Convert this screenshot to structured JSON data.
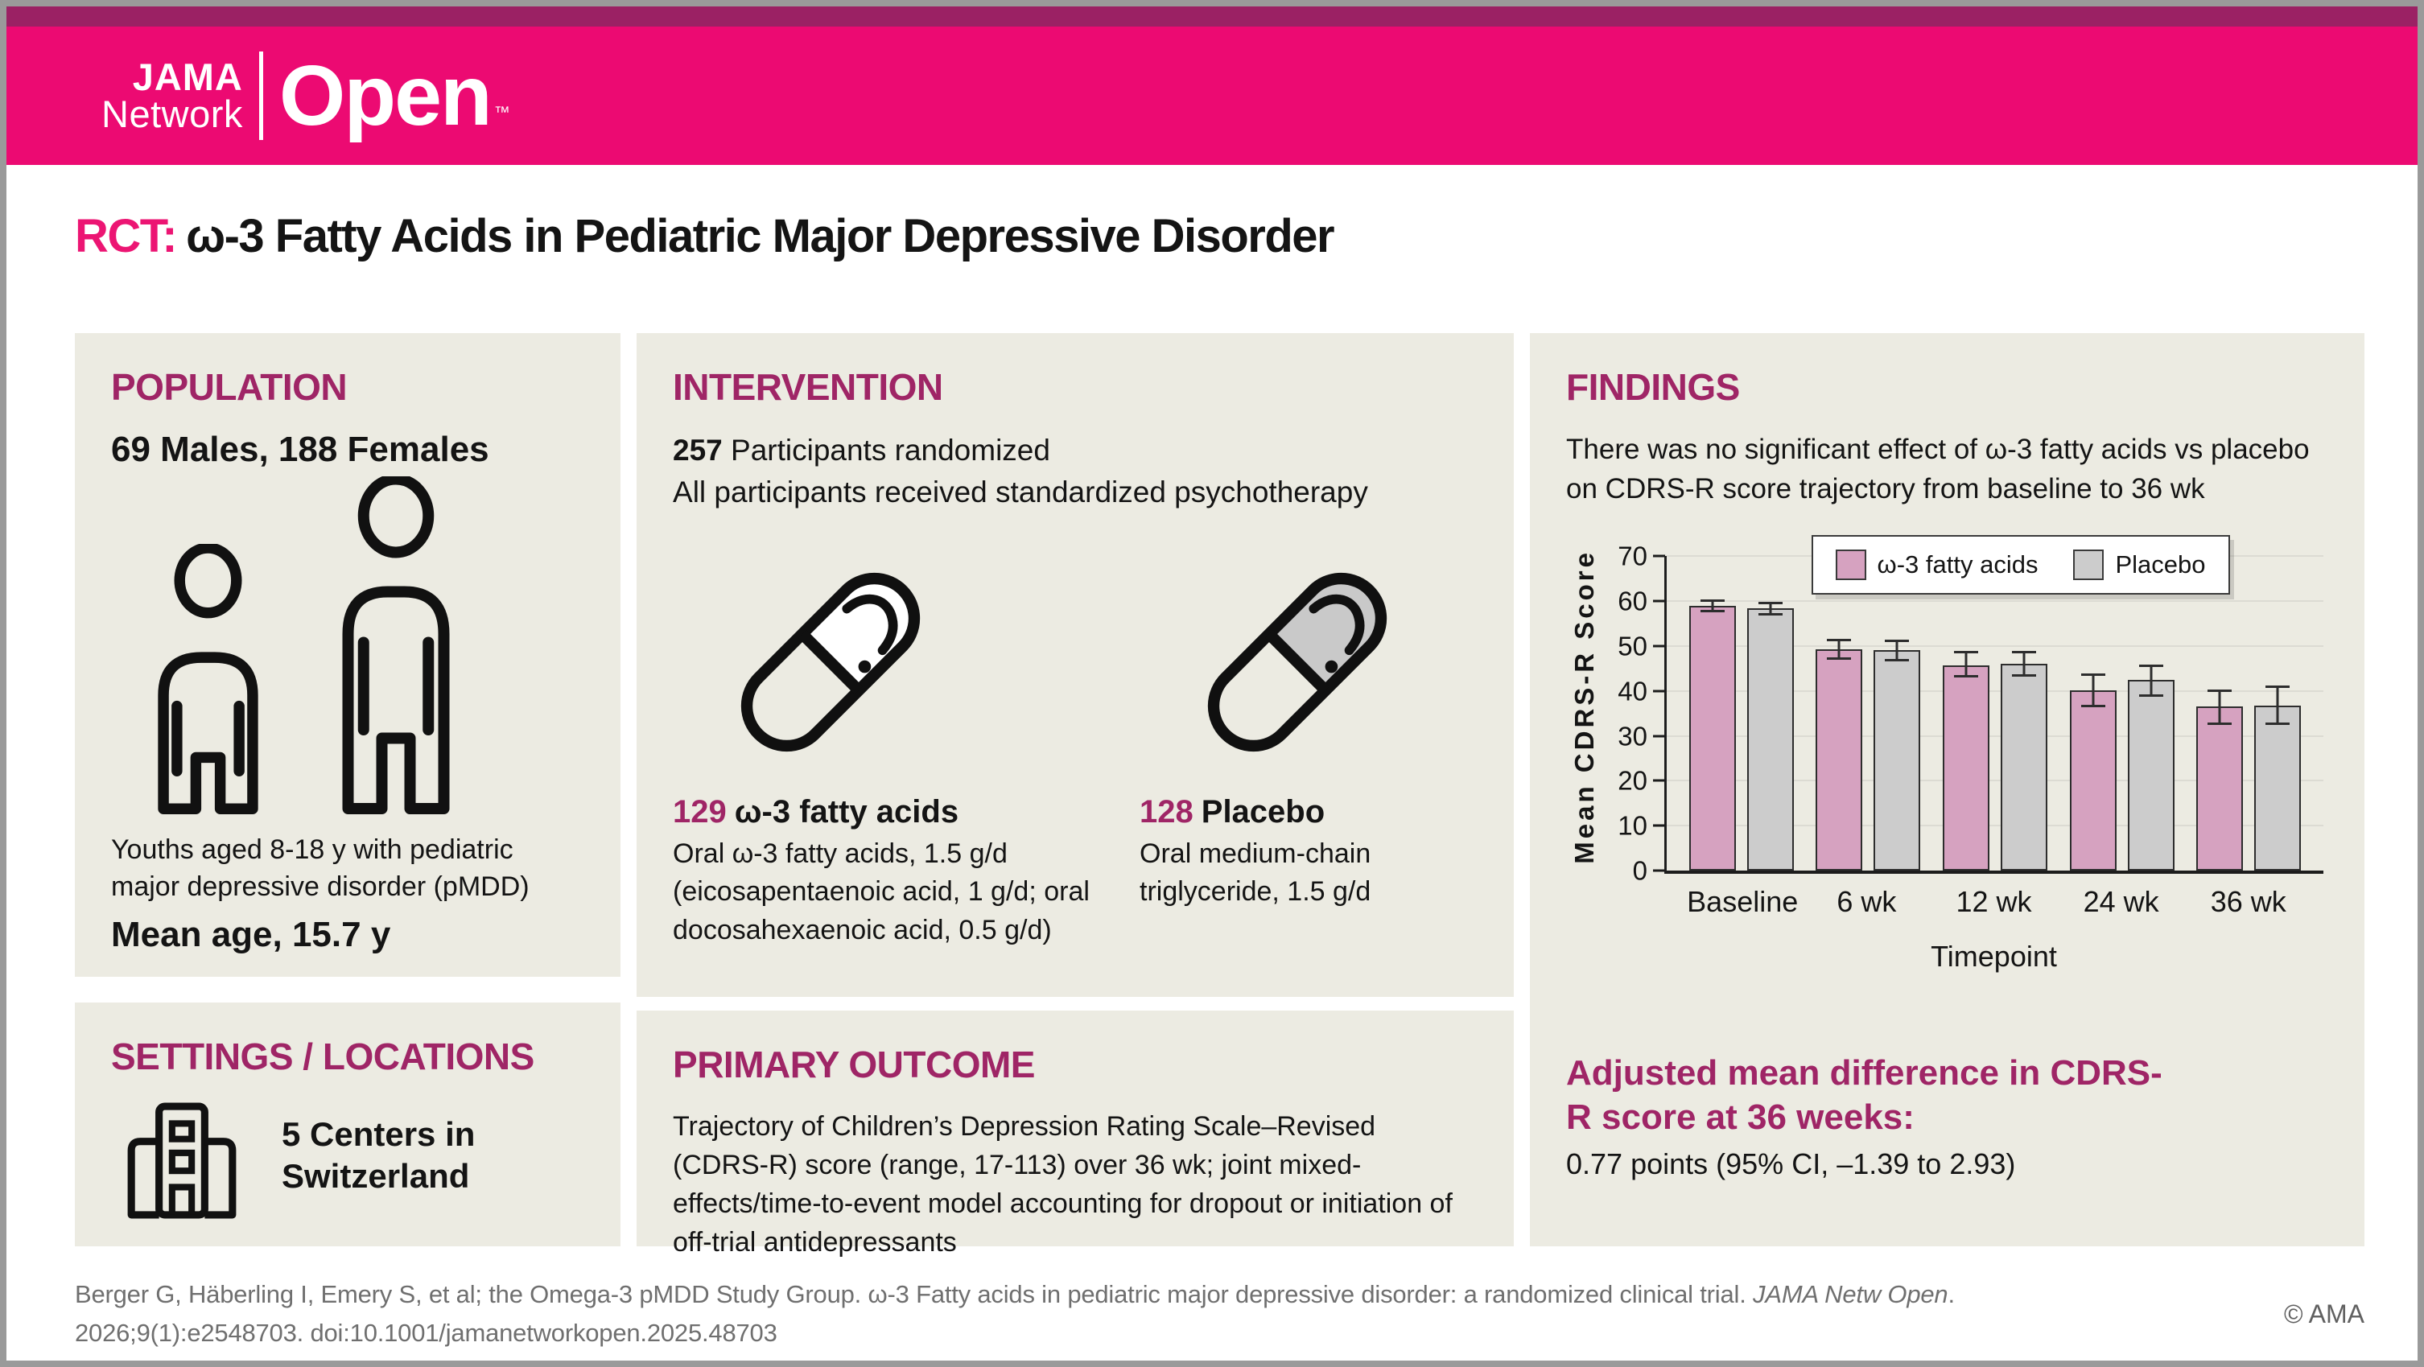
{
  "header": {
    "journal_top": "JAMA",
    "journal_bottom": "Network",
    "journal_name": "Open",
    "tm": "™"
  },
  "title": {
    "prefix": "RCT:",
    "text": "ω-3 Fatty Acids in Pediatric Major Depressive Disorder"
  },
  "population": {
    "heading": "POPULATION",
    "counts": "69 Males, 188 Females",
    "description": "Youths aged 8-18 y with pediatric major depressive disorder (pMDD)",
    "mean_age": "Mean age, 15.7 y"
  },
  "settings": {
    "heading": "SETTINGS / LOCATIONS",
    "text": "5 Centers in Switzerland"
  },
  "intervention": {
    "heading": "INTERVENTION",
    "randomized_count": "257",
    "randomized_label": " Participants randomized",
    "subtitle": "All participants received standardized psychotherapy",
    "arms": [
      {
        "count": "129",
        "name": "ω-3 fatty acids",
        "detail": "Oral ω-3 fatty acids, 1.5 g/d (eicosapentaenoic acid, 1 g/d; oral docosahexaenoic acid, 0.5 g/d)",
        "pill_fill": "#ffffff"
      },
      {
        "count": "128",
        "name": "Placebo",
        "detail": "Oral medium-chain triglyceride, 1.5 g/d",
        "pill_fill": "#c9c9c9"
      }
    ]
  },
  "primary_outcome": {
    "heading": "PRIMARY OUTCOME",
    "text": "Trajectory of Children’s Depression Rating Scale–Revised (CDRS-R) score (range, 17-113) over 36 wk; joint mixed-effects/time-to-event model accounting for dropout or initiation of off-trial antidepressants"
  },
  "findings": {
    "heading": "FINDINGS",
    "summary": "There was no significant effect of ω-3 fatty acids vs placebo on CDRS-R score trajectory from baseline to 36 wk",
    "result_heading": "Adjusted mean difference in CDRS-R score at 36 weeks:",
    "result_value": "0.77 points (95% CI, –1.39 to 2.93)"
  },
  "chart_data": {
    "type": "bar",
    "title": "",
    "categories": [
      "Baseline",
      "6 wk",
      "12 wk",
      "24 wk",
      "36 wk"
    ],
    "series": [
      {
        "name": "ω-3 fatty acids",
        "color": "#d6a2c0",
        "values": [
          59.0,
          49.3,
          45.7,
          40.2,
          36.5
        ],
        "ci_low": [
          57.4,
          46.9,
          42.9,
          36.4,
          32.4
        ],
        "ci_high": [
          60.4,
          51.6,
          48.9,
          43.8,
          40.3
        ]
      },
      {
        "name": "Placebo",
        "color": "#cccccc",
        "values": [
          58.3,
          49.0,
          46.1,
          42.4,
          36.8
        ],
        "ci_low": [
          56.8,
          46.5,
          43.2,
          38.7,
          32.4
        ],
        "ci_high": [
          59.8,
          51.4,
          48.9,
          45.8,
          41.2
        ]
      }
    ],
    "xlabel": "Timepoint",
    "ylabel": "Mean CDRS-R Score",
    "ylim": [
      0,
      70
    ],
    "yticks": [
      0,
      10,
      20,
      30,
      40,
      50,
      60,
      70
    ],
    "grid": true,
    "legend_position": "top-center"
  },
  "footer": {
    "citation_before_italic": "Berger G, Häberling I, Emery S, et al; the Omega-3 pMDD Study Group. ω-3 Fatty acids in pediatric major depressive disorder: a randomized clinical trial. ",
    "citation_italic": "JAMA Netw Open",
    "citation_after_italic": ". 2026;9(1):e2548703. doi:10.1001/jamanetworkopen.2025.48703",
    "copyright": "© AMA"
  },
  "colors": {
    "brand_pink": "#ec0a72",
    "brand_dark_strip": "#9b2164",
    "heading_magenta": "#9f2566",
    "panel_background": "#ecebe2",
    "bar_pink": "#d6a2c0",
    "bar_gray": "#cccccc"
  }
}
